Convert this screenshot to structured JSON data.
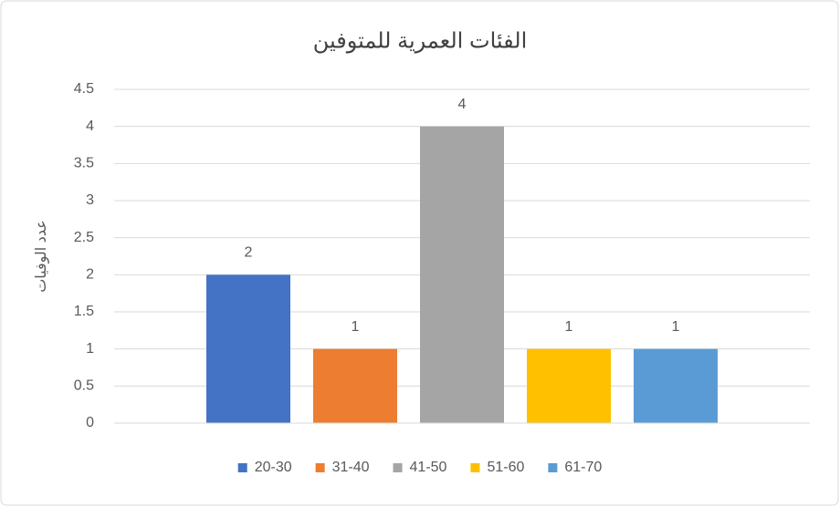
{
  "chart_data": {
    "type": "bar",
    "title": "الفئات العمرية للمتوفين",
    "y_label": "عدد الوفيات",
    "categories": [
      null
    ],
    "series": [
      {
        "name": "20-30",
        "color": "#4472c4",
        "values": [
          2
        ]
      },
      {
        "name": "31-40",
        "color": "#ed7d31",
        "values": [
          1
        ]
      },
      {
        "name": "41-50",
        "color": "#a5a5a5",
        "values": [
          4
        ]
      },
      {
        "name": "51-60",
        "color": "#ffc000",
        "values": [
          1
        ]
      },
      {
        "name": "61-70",
        "color": "#5b9bd5",
        "values": [
          1
        ]
      }
    ],
    "ylim": [
      0,
      4.5
    ],
    "yticks": [
      0,
      0.5,
      1,
      1.5,
      2,
      2.5,
      3,
      3.5,
      4,
      4.5
    ],
    "grid": true,
    "legend": "bottom",
    "data_labels": true
  }
}
